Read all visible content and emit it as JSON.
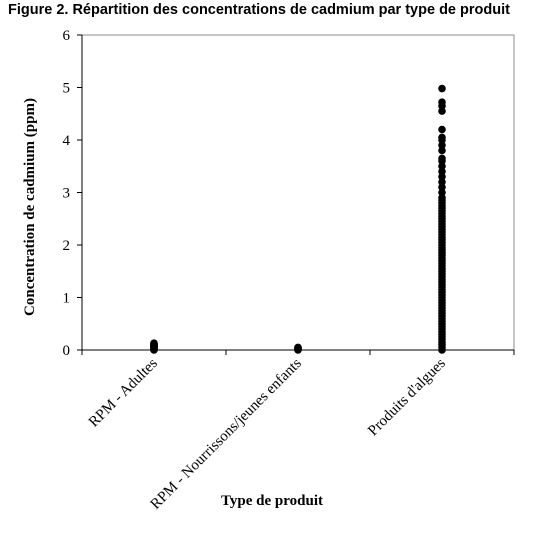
{
  "title": "Figure 2. Répartition des concentrations de cadmium par type de produit",
  "chart_data": {
    "type": "scatter",
    "title": "Figure 2. Répartition des concentrations de cadmium par type de produit",
    "xlabel": "Type de produit",
    "ylabel": "Concentration de cadmium (ppm)",
    "categories": [
      "RPM - Adultes",
      "RPM - Nourrissons/jeunes enfants",
      "Produits d'algues"
    ],
    "ylim": [
      0,
      6
    ],
    "yticks": [
      0,
      1,
      2,
      3,
      4,
      5,
      6
    ],
    "grid": false,
    "legend": "none",
    "marker_color": "#000000",
    "series": [
      {
        "category": "RPM - Adultes",
        "values": [
          0,
          0.01,
          0.02,
          0.03,
          0.04,
          0.05,
          0.06,
          0.07,
          0.08,
          0.09,
          0.1,
          0.11,
          0.12,
          0.13
        ]
      },
      {
        "category": "RPM - Nourrissons/jeunes enfants",
        "values": [
          0,
          0.01,
          0.02,
          0.03,
          0.04,
          0.05
        ]
      },
      {
        "category": "Produits d'algues",
        "values": [
          0,
          0.05,
          0.1,
          0.15,
          0.2,
          0.25,
          0.3,
          0.35,
          0.4,
          0.45,
          0.5,
          0.55,
          0.6,
          0.65,
          0.7,
          0.75,
          0.8,
          0.85,
          0.9,
          0.95,
          1.0,
          1.05,
          1.1,
          1.15,
          1.2,
          1.25,
          1.3,
          1.35,
          1.4,
          1.45,
          1.5,
          1.55,
          1.6,
          1.65,
          1.7,
          1.75,
          1.8,
          1.85,
          1.9,
          1.95,
          2.0,
          2.05,
          2.1,
          2.15,
          2.2,
          2.25,
          2.3,
          2.35,
          2.4,
          2.45,
          2.5,
          2.55,
          2.6,
          2.65,
          2.7,
          2.75,
          2.8,
          2.85,
          2.9,
          3.0,
          3.1,
          3.2,
          3.3,
          3.4,
          3.5,
          3.6,
          3.65,
          3.8,
          3.9,
          4.0,
          4.05,
          4.2,
          4.55,
          4.65,
          4.72,
          4.98
        ]
      }
    ]
  }
}
